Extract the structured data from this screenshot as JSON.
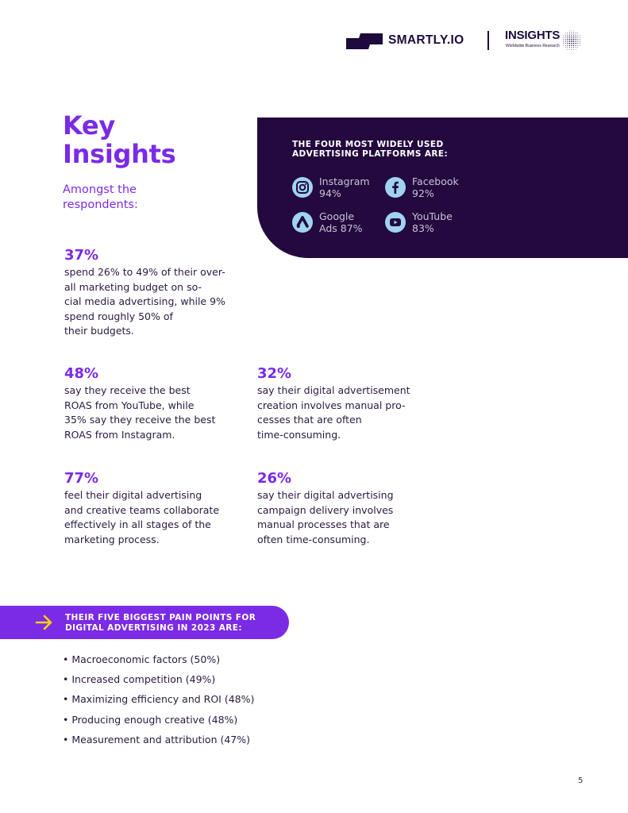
{
  "header": {
    "brand": "SMARTLY.IO",
    "partner": "INSIGHTS",
    "partner_tagline": "Worldwide Business Research",
    "brand_color": "#1e0a3c"
  },
  "title": {
    "line1": "Key",
    "line2": "Insights"
  },
  "subtitle": {
    "line1": "Amongst the",
    "line2": "respondents:"
  },
  "accent_color": "#7b2ae6",
  "panel": {
    "title_line1": "THE FOUR MOST WIDELY USED",
    "title_line2": "ADVERTISING PLATFORMS ARE:",
    "background": "#23093e",
    "platforms": [
      {
        "icon": "instagram-icon",
        "line1": "Instagram",
        "line2": "94%"
      },
      {
        "icon": "facebook-icon",
        "line1": "Facebook",
        "line2": "92%"
      },
      {
        "icon": "google-ads-icon",
        "line1": "Google",
        "line2": "Ads 87%"
      },
      {
        "icon": "youtube-icon",
        "line1": "YouTube",
        "line2": "83%"
      }
    ]
  },
  "stats": [
    {
      "value": "37%",
      "lines": [
        "spend 26% to 49% of their over-",
        "all marketing budget on so-",
        "cial media advertising, while 9%",
        "spend roughly 50% of",
        "their budgets."
      ]
    },
    {
      "value": "48%",
      "lines": [
        "say they receive the best",
        "ROAS from YouTube, while",
        "35% say they receive the best",
        "ROAS from Instagram."
      ]
    },
    {
      "value": "32%",
      "lines": [
        "say their digital advertisement",
        "creation involves manual pro-",
        "cesses that are often",
        "time-consuming."
      ]
    },
    {
      "value": "77%",
      "lines": [
        "feel their digital advertising",
        "and creative teams collaborate",
        "effectively in all stages of the",
        "marketing process."
      ]
    },
    {
      "value": "26%",
      "lines": [
        "say their digital advertising",
        "campaign delivery involves",
        "manual processes that are",
        "often time-consuming."
      ]
    }
  ],
  "pain_points": {
    "title_line1": "THEIR FIVE BIGGEST PAIN POINTS FOR",
    "title_line2": "DIGITAL ADVERTISING IN 2023 ARE:",
    "arrow_color": "#f5d400",
    "items": [
      "• Macroeconomic factors (50%)",
      "• Increased competition (49%)",
      "• Maximizing efficiency and ROI (48%)",
      "• Producing enough creative (48%)",
      "• Measurement and attribution (47%)"
    ]
  },
  "page_number": "5"
}
